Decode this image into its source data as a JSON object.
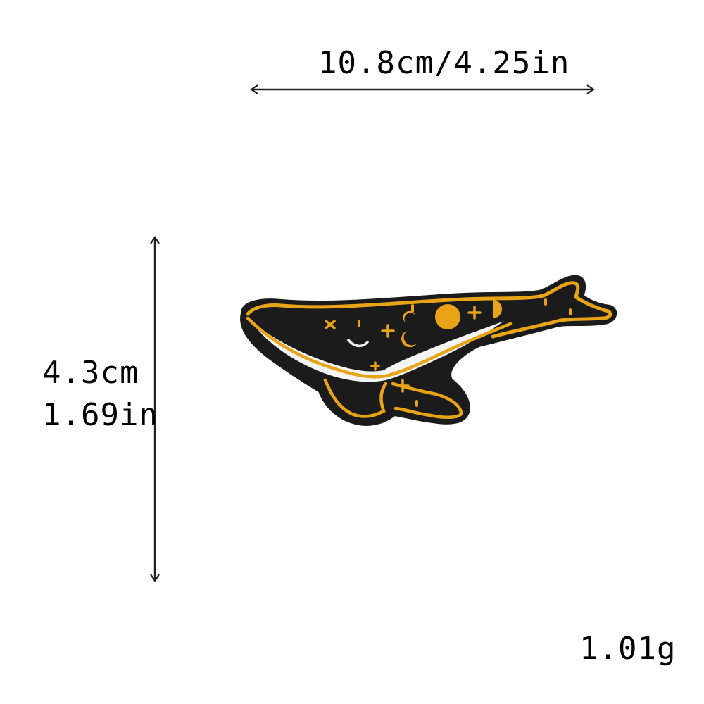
{
  "dimensions": {
    "width_label": "10.8cm/4.25in",
    "height_cm_label": "4.3cm",
    "height_in_label": "1.69in",
    "weight_label": "1.01g"
  },
  "product": {
    "description_icon": "whale-patch-icon",
    "colors": {
      "body": "#1b1b1b",
      "outline": "#e8a317",
      "belly": "#f4f4f4",
      "arrow": "#222222"
    }
  }
}
